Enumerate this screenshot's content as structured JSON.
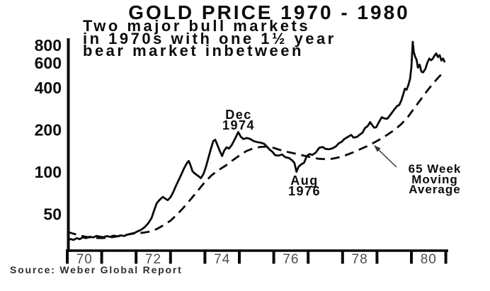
{
  "chart_data": {
    "type": "line",
    "title": "GOLD PRICE 1970 - 1980",
    "subtitle": "Two major bull markets\nin 1970s with one 1½ year\nbear market inbetween",
    "source": "Source: Weber Global Report",
    "y_scale": "log",
    "grid": false,
    "y_ticks": [
      800,
      600,
      400,
      200,
      100,
      50
    ],
    "y_range": [
      27,
      1000
    ],
    "x_range": [
      1970,
      1981.07
    ],
    "x_year_ticks": [
      1970,
      1971,
      1972,
      1973,
      1974,
      1975,
      1976,
      1977,
      1978,
      1979,
      1980,
      1981
    ],
    "x_labels": [
      {
        "text": "70",
        "year": 1970.5
      },
      {
        "text": "72",
        "year": 1972.5
      },
      {
        "text": "74",
        "year": 1974.5
      },
      {
        "text": "76",
        "year": 1976.5
      },
      {
        "text": "78",
        "year": 1978.5
      },
      {
        "text": "80",
        "year": 1980.5
      }
    ],
    "line_color": "#0a0a0a",
    "annotations": {
      "peak": {
        "text": "Dec\n1974",
        "year": 1974.97,
        "price": 195
      },
      "trough": {
        "text": "Aug\n1976",
        "year": 1976.66,
        "price": 100.5
      },
      "ma_label": {
        "text": "65 Week\nMoving\nAverage"
      }
    },
    "series": [
      {
        "name": "Gold price",
        "style": "solid",
        "points": [
          [
            1970.0,
            32.5
          ],
          [
            1970.1,
            33.3
          ],
          [
            1970.18,
            32.8
          ],
          [
            1970.28,
            33.8
          ],
          [
            1970.36,
            33.2
          ],
          [
            1970.45,
            34.2
          ],
          [
            1970.55,
            33.8
          ],
          [
            1970.65,
            34.6
          ],
          [
            1970.75,
            34.2
          ],
          [
            1970.85,
            35.0
          ],
          [
            1970.95,
            34.6
          ],
          [
            1971.05,
            34.3
          ],
          [
            1971.15,
            34.9
          ],
          [
            1971.25,
            34.5
          ],
          [
            1971.35,
            35.2
          ],
          [
            1971.45,
            34.8
          ],
          [
            1971.55,
            35.3
          ],
          [
            1971.65,
            35.0
          ],
          [
            1971.75,
            35.8
          ],
          [
            1971.85,
            36.3
          ],
          [
            1971.95,
            36.8
          ],
          [
            1972.05,
            37.8
          ],
          [
            1972.15,
            38.8
          ],
          [
            1972.25,
            40.5
          ],
          [
            1972.35,
            43.0
          ],
          [
            1972.45,
            47.0
          ],
          [
            1972.52,
            53.0
          ],
          [
            1972.6,
            60.0
          ],
          [
            1972.7,
            64.0
          ],
          [
            1972.78,
            66.5
          ],
          [
            1972.85,
            64.5
          ],
          [
            1972.92,
            63.0
          ],
          [
            1973.0,
            66.0
          ],
          [
            1973.08,
            72.0
          ],
          [
            1973.16,
            80.0
          ],
          [
            1973.24,
            88.0
          ],
          [
            1973.32,
            97.0
          ],
          [
            1973.4,
            107.0
          ],
          [
            1973.48,
            116.0
          ],
          [
            1973.53,
            120.0
          ],
          [
            1973.58,
            112.0
          ],
          [
            1973.64,
            101.0
          ],
          [
            1973.72,
            97.0
          ],
          [
            1973.8,
            94.0
          ],
          [
            1973.88,
            90.5
          ],
          [
            1973.95,
            96.0
          ],
          [
            1974.02,
            107.0
          ],
          [
            1974.1,
            126.0
          ],
          [
            1974.18,
            148.0
          ],
          [
            1974.24,
            166.0
          ],
          [
            1974.3,
            170.0
          ],
          [
            1974.38,
            152.0
          ],
          [
            1974.44,
            140.0
          ],
          [
            1974.5,
            130.0
          ],
          [
            1974.56,
            142.0
          ],
          [
            1974.63,
            150.0
          ],
          [
            1974.7,
            147.0
          ],
          [
            1974.78,
            156.0
          ],
          [
            1974.86,
            170.0
          ],
          [
            1974.92,
            182.0
          ],
          [
            1974.97,
            193.0
          ],
          [
            1975.04,
            179.0
          ],
          [
            1975.12,
            172.0
          ],
          [
            1975.22,
            175.0
          ],
          [
            1975.32,
            172.0
          ],
          [
            1975.42,
            166.0
          ],
          [
            1975.52,
            163.5
          ],
          [
            1975.62,
            162.0
          ],
          [
            1975.72,
            159.0
          ],
          [
            1975.8,
            152.0
          ],
          [
            1975.88,
            144.5
          ],
          [
            1975.96,
            139.5
          ],
          [
            1976.04,
            132.0
          ],
          [
            1976.14,
            131.0
          ],
          [
            1976.24,
            133.5
          ],
          [
            1976.34,
            127.5
          ],
          [
            1976.44,
            126.0
          ],
          [
            1976.54,
            121.0
          ],
          [
            1976.6,
            116.0
          ],
          [
            1976.66,
            100.5
          ],
          [
            1976.72,
            109.0
          ],
          [
            1976.8,
            113.5
          ],
          [
            1976.88,
            116.5
          ],
          [
            1976.96,
            130.0
          ],
          [
            1977.04,
            134.5
          ],
          [
            1977.12,
            132.5
          ],
          [
            1977.22,
            137.5
          ],
          [
            1977.32,
            149.0
          ],
          [
            1977.42,
            151.0
          ],
          [
            1977.5,
            146.5
          ],
          [
            1977.6,
            145.5
          ],
          [
            1977.7,
            147.5
          ],
          [
            1977.8,
            152.0
          ],
          [
            1977.9,
            161.0
          ],
          [
            1977.97,
            164.0
          ],
          [
            1978.05,
            172.0
          ],
          [
            1978.15,
            178.0
          ],
          [
            1978.25,
            184.0
          ],
          [
            1978.32,
            176.0
          ],
          [
            1978.42,
            178.0
          ],
          [
            1978.5,
            185.0
          ],
          [
            1978.58,
            191.0
          ],
          [
            1978.65,
            206.0
          ],
          [
            1978.73,
            213.0
          ],
          [
            1978.8,
            227.0
          ],
          [
            1978.86,
            216.0
          ],
          [
            1978.92,
            207.0
          ],
          [
            1978.98,
            209.0
          ],
          [
            1979.06,
            228.0
          ],
          [
            1979.14,
            246.0
          ],
          [
            1979.22,
            241.0
          ],
          [
            1979.3,
            240.0
          ],
          [
            1979.4,
            258.0
          ],
          [
            1979.5,
            279.0
          ],
          [
            1979.58,
            295.0
          ],
          [
            1979.65,
            302.0
          ],
          [
            1979.71,
            326.0
          ],
          [
            1979.76,
            356.0
          ],
          [
            1979.81,
            393.0
          ],
          [
            1979.86,
            387.0
          ],
          [
            1979.91,
            416.0
          ],
          [
            1979.96,
            462.0
          ],
          [
            1980.0,
            560.0
          ],
          [
            1980.04,
            850.0
          ],
          [
            1980.07,
            718.0
          ],
          [
            1980.11,
            664.0
          ],
          [
            1980.15,
            634.0
          ],
          [
            1980.19,
            556.0
          ],
          [
            1980.24,
            584.0
          ],
          [
            1980.29,
            520.0
          ],
          [
            1980.34,
            514.0
          ],
          [
            1980.41,
            546.0
          ],
          [
            1980.46,
            601.0
          ],
          [
            1980.52,
            645.0
          ],
          [
            1980.57,
            628.0
          ],
          [
            1980.62,
            642.0
          ],
          [
            1980.67,
            676.0
          ],
          [
            1980.72,
            701.0
          ],
          [
            1980.77,
            662.0
          ],
          [
            1980.82,
            683.0
          ],
          [
            1980.87,
            625.0
          ],
          [
            1980.92,
            646.0
          ],
          [
            1980.97,
            606.0
          ]
        ]
      },
      {
        "name": "65 Week Moving Average",
        "style": "dashed",
        "points": [
          [
            1970.0,
            37.5
          ],
          [
            1970.2,
            36.2
          ],
          [
            1970.4,
            35.1
          ],
          [
            1970.6,
            34.3
          ],
          [
            1970.8,
            33.9
          ],
          [
            1971.0,
            33.8
          ],
          [
            1971.2,
            34.0
          ],
          [
            1971.4,
            34.6
          ],
          [
            1971.6,
            35.3
          ],
          [
            1971.8,
            36.0
          ],
          [
            1972.0,
            36.6
          ],
          [
            1972.2,
            36.9
          ],
          [
            1972.4,
            37.6
          ],
          [
            1972.6,
            39.2
          ],
          [
            1972.8,
            41.8
          ],
          [
            1973.0,
            45.0
          ],
          [
            1973.2,
            50.0
          ],
          [
            1973.4,
            56.5
          ],
          [
            1973.6,
            64.5
          ],
          [
            1973.8,
            74.0
          ],
          [
            1974.0,
            85.0
          ],
          [
            1974.2,
            95.0
          ],
          [
            1974.4,
            103.5
          ],
          [
            1974.6,
            111.0
          ],
          [
            1974.8,
            121.0
          ],
          [
            1975.0,
            131.0
          ],
          [
            1975.2,
            141.0
          ],
          [
            1975.4,
            147.5
          ],
          [
            1975.6,
            151.0
          ],
          [
            1975.8,
            152.0
          ],
          [
            1975.95,
            150.0
          ],
          [
            1976.1,
            146.0
          ],
          [
            1976.3,
            141.0
          ],
          [
            1976.5,
            137.5
          ],
          [
            1976.7,
            134.0
          ],
          [
            1976.9,
            130.5
          ],
          [
            1977.1,
            127.0
          ],
          [
            1977.3,
            124.5
          ],
          [
            1977.5,
            123.5
          ],
          [
            1977.7,
            124.5
          ],
          [
            1977.9,
            127.5
          ],
          [
            1978.1,
            132.0
          ],
          [
            1978.3,
            138.0
          ],
          [
            1978.5,
            145.0
          ],
          [
            1978.7,
            152.5
          ],
          [
            1978.9,
            161.5
          ],
          [
            1979.1,
            172.0
          ],
          [
            1979.3,
            184.5
          ],
          [
            1979.5,
            199.0
          ],
          [
            1979.7,
            219.0
          ],
          [
            1979.9,
            247.0
          ],
          [
            1980.05,
            278.0
          ],
          [
            1980.2,
            312.0
          ],
          [
            1980.35,
            350.0
          ],
          [
            1980.5,
            391.0
          ],
          [
            1980.65,
            434.0
          ],
          [
            1980.8,
            478.0
          ],
          [
            1980.97,
            525.0
          ]
        ]
      }
    ]
  }
}
